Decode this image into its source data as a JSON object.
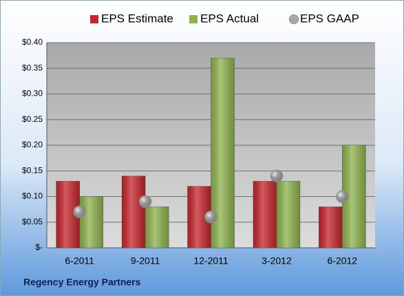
{
  "chart_data": {
    "type": "bar",
    "footer": "Regency Energy Partners",
    "categories": [
      "6-2011",
      "9-2011",
      "12-2011",
      "3-2012",
      "6-2012"
    ],
    "series": [
      {
        "name": "EPS Estimate",
        "color": "#c4252b",
        "mark": "bar",
        "values": [
          0.13,
          0.14,
          0.12,
          0.13,
          0.08
        ]
      },
      {
        "name": "EPS Actual",
        "color": "#8db24c",
        "mark": "bar",
        "values": [
          0.1,
          0.08,
          0.37,
          0.13,
          0.2
        ]
      },
      {
        "name": "EPS GAAP",
        "color": "#a8a8a8",
        "mark": "circle",
        "values": [
          0.07,
          0.09,
          0.06,
          0.14,
          0.1
        ]
      }
    ],
    "ylim": [
      0,
      0.4
    ],
    "yticks": [
      {
        "value": 0,
        "label": "$-"
      },
      {
        "value": 0.05,
        "label": "$0.05"
      },
      {
        "value": 0.1,
        "label": "$0.10"
      },
      {
        "value": 0.15,
        "label": "$0.15"
      },
      {
        "value": 0.2,
        "label": "$0.20"
      },
      {
        "value": 0.25,
        "label": "$0.25"
      },
      {
        "value": 0.3,
        "label": "$0.30"
      },
      {
        "value": 0.35,
        "label": "$0.35"
      },
      {
        "value": 0.4,
        "label": "$0.40"
      }
    ],
    "grid": true,
    "legend": "top"
  }
}
